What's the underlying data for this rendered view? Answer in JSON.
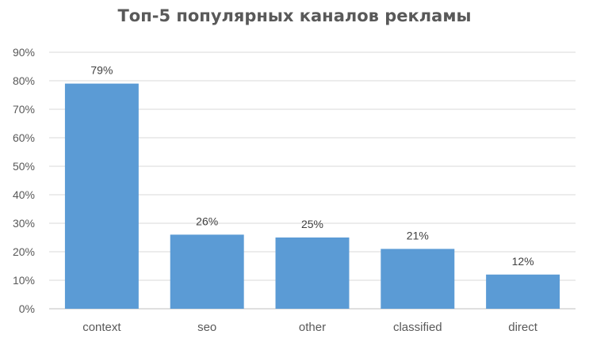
{
  "chart_data": {
    "type": "bar",
    "title": "Топ-5 популярных каналов рекламы",
    "xlabel": "",
    "ylabel": "",
    "categories": [
      "context",
      "seo",
      "other",
      "classified",
      "direct"
    ],
    "values": [
      79,
      26,
      25,
      21,
      12
    ],
    "data_labels": [
      "79%",
      "26%",
      "25%",
      "21%",
      "12%"
    ],
    "ylim": [
      0,
      90
    ],
    "y_ticks": [
      0,
      10,
      20,
      30,
      40,
      50,
      60,
      70,
      80,
      90
    ],
    "y_tick_labels": [
      "0%",
      "10%",
      "20%",
      "30%",
      "40%",
      "50%",
      "60%",
      "70%",
      "80%",
      "90%"
    ],
    "grid": true,
    "legend": "none",
    "bar_color": "#5b9bd5",
    "grid_color": "#d9d9d9"
  }
}
